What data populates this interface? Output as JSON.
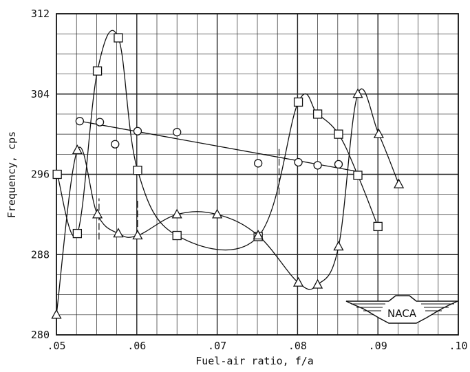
{
  "chart_data": {
    "type": "line",
    "xlabel": "Fuel-air ratio, f/a",
    "ylabel": "Frequency, cps",
    "xlim": [
      0.05,
      0.1
    ],
    "ylim": [
      280,
      312
    ],
    "x_ticks": [
      0.05,
      0.06,
      0.07,
      0.08,
      0.09,
      0.1
    ],
    "x_tick_labels": [
      ".05",
      ".06",
      ".07",
      ".08",
      ".09",
      ".10"
    ],
    "y_ticks": [
      280,
      288,
      296,
      304,
      312
    ],
    "y_tick_labels": [
      "280",
      "288",
      "296",
      "304",
      "312"
    ],
    "grid": true,
    "series": [
      {
        "marker": "circle",
        "points": [
          [
            0.0529,
            301.3
          ],
          [
            0.0554,
            301.2
          ],
          [
            0.0573,
            299.0
          ],
          [
            0.0601,
            300.3
          ],
          [
            0.065,
            300.2
          ],
          [
            0.0751,
            297.1
          ],
          [
            0.0801,
            297.2
          ],
          [
            0.0825,
            296.9
          ],
          [
            0.0851,
            297.0
          ]
        ],
        "fit": [
          [
            0.0529,
            301.3
          ],
          [
            0.088,
            296.2
          ]
        ]
      },
      {
        "marker": "square",
        "points": [
          [
            0.0501,
            296.0
          ],
          [
            0.0526,
            290.1
          ],
          [
            0.0551,
            306.3
          ],
          [
            0.0577,
            309.6
          ],
          [
            0.0601,
            296.4
          ],
          [
            0.065,
            289.9
          ],
          [
            0.0751,
            289.8
          ],
          [
            0.0801,
            303.2
          ],
          [
            0.0825,
            302.0
          ],
          [
            0.0851,
            300.0
          ],
          [
            0.0875,
            295.9
          ],
          [
            0.09,
            290.8
          ]
        ]
      },
      {
        "marker": "triangle",
        "points": [
          [
            0.05,
            282.0
          ],
          [
            0.0526,
            298.4
          ],
          [
            0.0551,
            292.0
          ],
          [
            0.0577,
            290.1
          ],
          [
            0.0601,
            289.9
          ],
          [
            0.065,
            292.0
          ],
          [
            0.07,
            292.0
          ],
          [
            0.0751,
            289.9
          ],
          [
            0.0801,
            285.2
          ],
          [
            0.0825,
            285.0
          ],
          [
            0.0851,
            288.8
          ],
          [
            0.0875,
            304.0
          ],
          [
            0.0901,
            300.0
          ],
          [
            0.0926,
            295.0
          ]
        ]
      }
    ],
    "dashed_marks": [
      {
        "x": 0.0553,
        "y_range": [
          289.5,
          293.6
        ]
      },
      {
        "x": 0.0601,
        "y_range": [
          289.8,
          293.5
        ]
      },
      {
        "x": 0.0777,
        "y_range": [
          294.0,
          298.6
        ]
      }
    ],
    "logo": {
      "text": "NACA"
    }
  }
}
